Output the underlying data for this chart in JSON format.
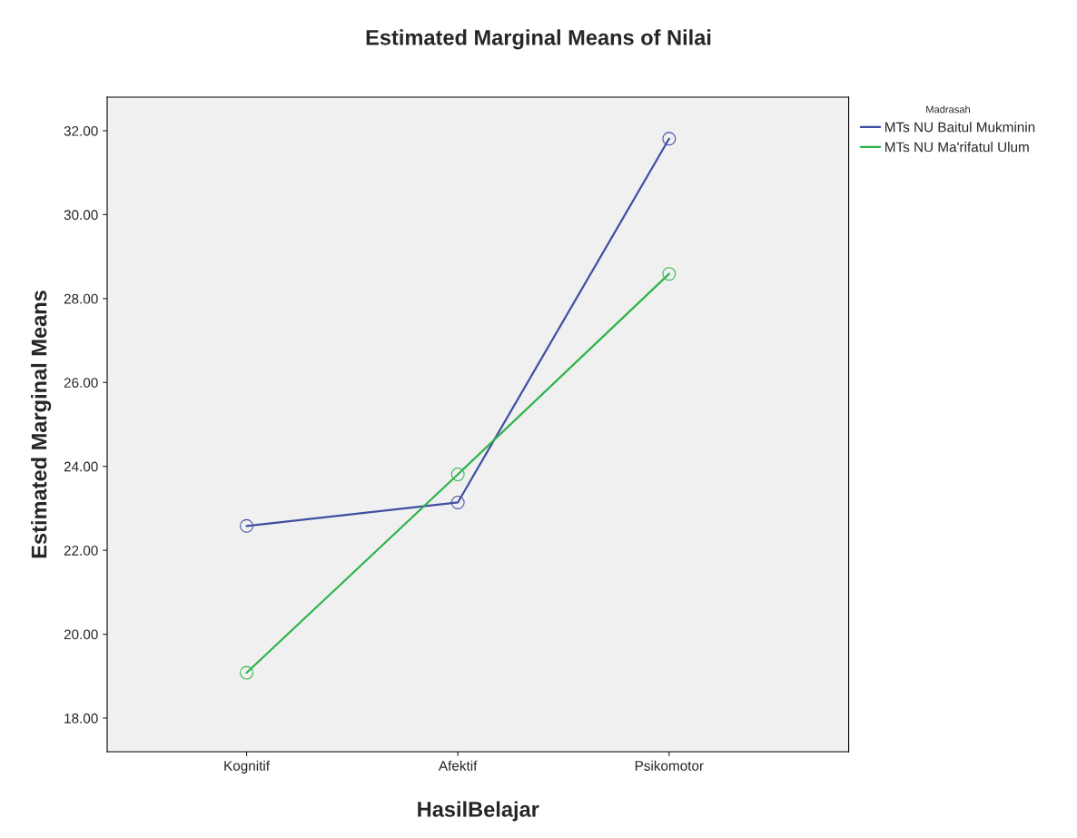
{
  "chart_data": {
    "type": "line",
    "title": "Estimated Marginal Means of Nilai",
    "xlabel": "HasilBelajar",
    "ylabel": "Estimated Marginal Means",
    "legend_title": "Madrasah",
    "categories": [
      "Kognitif",
      "Afektif",
      "Psikomotor"
    ],
    "series": [
      {
        "name": "MTs NU Baitul Mukminin",
        "color": "#3f4fa3",
        "values": [
          22.58,
          23.14,
          31.81
        ]
      },
      {
        "name": "MTs NU Ma'rifatul Ulum",
        "color": "#2eb34a",
        "values": [
          19.08,
          23.81,
          28.59
        ]
      }
    ],
    "ylim": [
      17.2,
      32.8
    ],
    "yticks": [
      {
        "value": 18,
        "label": "18.00"
      },
      {
        "value": 20,
        "label": "20.00"
      },
      {
        "value": 22,
        "label": "22.00"
      },
      {
        "value": 24,
        "label": "24.00"
      },
      {
        "value": 26,
        "label": "26.00"
      },
      {
        "value": 28,
        "label": "28.00"
      },
      {
        "value": 30,
        "label": "30.00"
      },
      {
        "value": 32,
        "label": "32.00"
      }
    ],
    "marker": "circle",
    "line_style": "solid",
    "grid": false,
    "legend": "top right"
  }
}
